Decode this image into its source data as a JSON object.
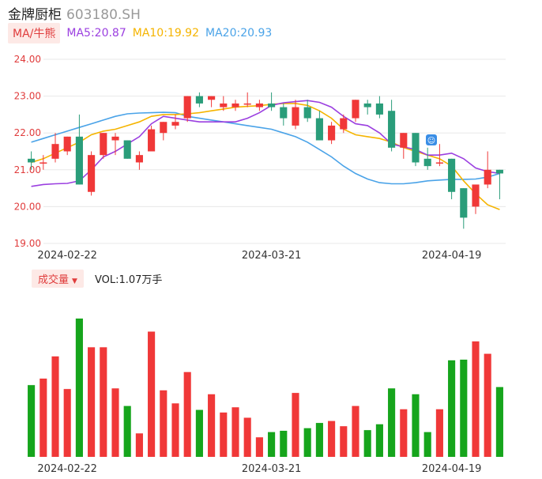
{
  "header": {
    "name": "金牌厨柜",
    "code": "603180.SH"
  },
  "ma": {
    "tag": "MA/牛熊",
    "ma5_label": "MA5:20.87",
    "ma10_label": "MA10:19.92",
    "ma20_label": "MA20:20.93",
    "colors": {
      "ma5": "#9b3fe0",
      "ma10": "#f5b400",
      "ma20": "#4aa3e8"
    }
  },
  "volume": {
    "tag": "成交量",
    "value_label": "VOL:1.07万手"
  },
  "colors": {
    "up": "#f03838",
    "down_price": "#2a9d7a",
    "down_volume": "#16a51c"
  },
  "chart_data": {
    "type": "candlestick",
    "y_ticks": [
      "24.00",
      "23.00",
      "22.00",
      "21.00",
      "20.00",
      "19.00"
    ],
    "ylim": [
      19.0,
      24.0
    ],
    "x_ticks": [
      "2024-02-22",
      "2024-03-21",
      "2024-04-19"
    ],
    "x_tick_index": [
      3,
      20,
      35
    ],
    "candles": [
      {
        "open": 21.3,
        "high": 21.5,
        "low": 21.0,
        "close": 21.2
      },
      {
        "open": 21.2,
        "high": 21.4,
        "low": 21.0,
        "close": 21.2
      },
      {
        "open": 21.3,
        "high": 22.0,
        "low": 21.2,
        "close": 21.7
      },
      {
        "open": 21.5,
        "high": 21.9,
        "low": 21.4,
        "close": 21.9
      },
      {
        "open": 21.9,
        "high": 22.5,
        "low": 20.6,
        "close": 20.6
      },
      {
        "open": 20.4,
        "high": 21.5,
        "low": 20.3,
        "close": 21.4
      },
      {
        "open": 21.4,
        "high": 22.0,
        "low": 21.3,
        "close": 22.0
      },
      {
        "open": 21.8,
        "high": 22.0,
        "low": 21.4,
        "close": 21.9
      },
      {
        "open": 21.8,
        "high": 21.8,
        "low": 21.3,
        "close": 21.3
      },
      {
        "open": 21.2,
        "high": 21.5,
        "low": 21.0,
        "close": 21.4
      },
      {
        "open": 21.5,
        "high": 22.2,
        "low": 21.5,
        "close": 22.1
      },
      {
        "open": 22.0,
        "high": 22.3,
        "low": 21.8,
        "close": 22.3
      },
      {
        "open": 22.2,
        "high": 22.5,
        "low": 22.1,
        "close": 22.3
      },
      {
        "open": 22.4,
        "high": 23.0,
        "low": 22.3,
        "close": 23.0
      },
      {
        "open": 23.0,
        "high": 23.1,
        "low": 22.7,
        "close": 22.8
      },
      {
        "open": 22.9,
        "high": 23.0,
        "low": 22.7,
        "close": 23.0
      },
      {
        "open": 22.7,
        "high": 23.0,
        "low": 22.6,
        "close": 22.8
      },
      {
        "open": 22.7,
        "high": 22.9,
        "low": 22.6,
        "close": 22.8
      },
      {
        "open": 22.8,
        "high": 23.1,
        "low": 22.7,
        "close": 22.8
      },
      {
        "open": 22.7,
        "high": 22.9,
        "low": 22.6,
        "close": 22.8
      },
      {
        "open": 22.8,
        "high": 23.1,
        "low": 22.6,
        "close": 22.7
      },
      {
        "open": 22.7,
        "high": 22.8,
        "low": 22.2,
        "close": 22.4
      },
      {
        "open": 22.2,
        "high": 22.9,
        "low": 22.1,
        "close": 22.7
      },
      {
        "open": 22.7,
        "high": 22.9,
        "low": 22.3,
        "close": 22.4
      },
      {
        "open": 22.4,
        "high": 22.6,
        "low": 21.8,
        "close": 21.8
      },
      {
        "open": 21.8,
        "high": 22.3,
        "low": 21.7,
        "close": 22.2
      },
      {
        "open": 22.1,
        "high": 22.5,
        "low": 22.0,
        "close": 22.4
      },
      {
        "open": 22.4,
        "high": 22.9,
        "low": 22.3,
        "close": 22.9
      },
      {
        "open": 22.8,
        "high": 22.9,
        "low": 22.5,
        "close": 22.7
      },
      {
        "open": 22.8,
        "high": 23.0,
        "low": 22.4,
        "close": 22.5
      },
      {
        "open": 22.6,
        "high": 22.9,
        "low": 21.5,
        "close": 21.6
      },
      {
        "open": 21.6,
        "high": 22.0,
        "low": 21.3,
        "close": 22.0
      },
      {
        "open": 22.0,
        "high": 22.0,
        "low": 21.1,
        "close": 21.2
      },
      {
        "open": 21.3,
        "high": 21.6,
        "low": 21.0,
        "close": 21.1
      },
      {
        "open": 21.2,
        "high": 21.7,
        "low": 21.1,
        "close": 21.2
      },
      {
        "open": 21.3,
        "high": 21.3,
        "low": 20.2,
        "close": 20.4
      },
      {
        "open": 20.5,
        "high": 20.5,
        "low": 19.4,
        "close": 19.7
      },
      {
        "open": 20.0,
        "high": 20.6,
        "low": 19.8,
        "close": 20.6
      },
      {
        "open": 20.6,
        "high": 21.5,
        "low": 20.5,
        "close": 21.0
      },
      {
        "open": 21.0,
        "high": 21.0,
        "low": 20.2,
        "close": 20.9
      }
    ],
    "ma5": [
      20.55,
      20.6,
      20.62,
      20.63,
      20.7,
      21.0,
      21.35,
      21.5,
      21.7,
      21.9,
      22.25,
      22.45,
      22.4,
      22.35,
      22.3,
      22.3,
      22.3,
      22.3,
      22.4,
      22.55,
      22.75,
      22.82,
      22.85,
      22.88,
      22.83,
      22.7,
      22.45,
      22.25,
      22.2,
      22.0,
      21.7,
      21.62,
      21.55,
      21.4,
      21.4,
      21.45,
      21.3,
      21.05,
      20.95,
      20.9
    ],
    "ma10": [
      21.2,
      21.3,
      21.45,
      21.6,
      21.75,
      21.95,
      22.05,
      22.1,
      22.2,
      22.3,
      22.45,
      22.5,
      22.5,
      22.52,
      22.55,
      22.6,
      22.65,
      22.7,
      22.72,
      22.74,
      22.78,
      22.8,
      22.8,
      22.75,
      22.6,
      22.4,
      22.1,
      21.95,
      21.9,
      21.85,
      21.75,
      21.6,
      21.5,
      21.4,
      21.3,
      21.1,
      20.7,
      20.35,
      20.05,
      19.92
    ],
    "ma20": [
      21.75,
      21.85,
      21.95,
      22.05,
      22.15,
      22.25,
      22.35,
      22.45,
      22.52,
      22.54,
      22.55,
      22.56,
      22.55,
      22.45,
      22.4,
      22.35,
      22.3,
      22.25,
      22.2,
      22.15,
      22.1,
      22.0,
      21.9,
      21.75,
      21.55,
      21.35,
      21.1,
      20.9,
      20.75,
      20.65,
      20.62,
      20.62,
      20.65,
      20.7,
      20.72,
      20.74,
      20.74,
      20.75,
      20.8,
      20.9
    ],
    "volume": [
      1.1,
      1.2,
      1.54,
      1.04,
      2.12,
      1.68,
      1.68,
      1.05,
      0.78,
      0.36,
      1.92,
      1.02,
      0.82,
      1.3,
      0.72,
      0.96,
      0.68,
      0.76,
      0.6,
      0.3,
      0.38,
      0.4,
      0.98,
      0.44,
      0.52,
      0.55,
      0.47,
      0.78,
      0.41,
      0.5,
      1.05,
      0.73,
      0.96,
      0.38,
      0.73,
      1.48,
      1.49,
      1.77,
      1.58,
      1.07
    ]
  }
}
